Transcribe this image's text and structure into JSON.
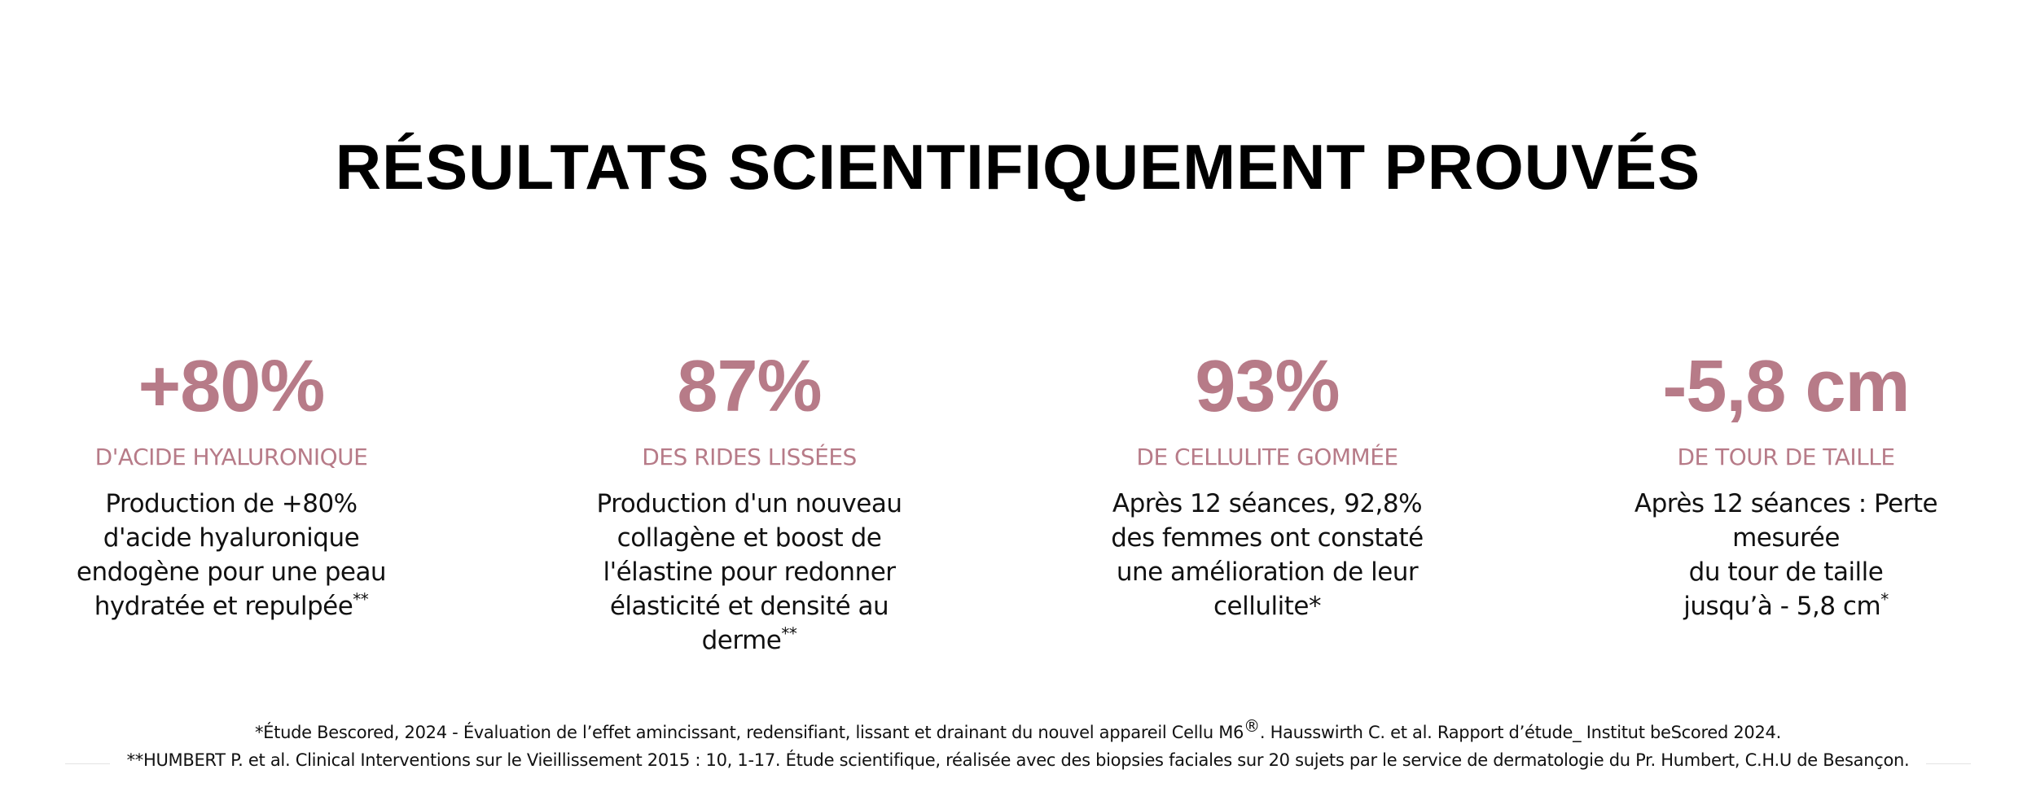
{
  "header": {
    "title": "RÉSULTATS SCIENTIFIQUEMENT PROUVÉS"
  },
  "stats": [
    {
      "value": "+80%",
      "label": "D'ACIDE HYALURONIQUE",
      "lines": [
        "Production de +80%",
        "d'acide hyaluronique",
        "endogène pour une peau",
        "hydratée et repulpée"
      ],
      "note": "**"
    },
    {
      "value": "87%",
      "label": "DES RIDES LISSÉES",
      "lines": [
        "Production d'un nouveau",
        "collagène et boost de",
        "l'élastine pour redonner",
        "élasticité et densité au",
        "derme"
      ],
      "note": "**"
    },
    {
      "value": "93%",
      "label": "DE CELLULITE GOMMÉE",
      "lines": [
        "Après 12 séances, 92,8%",
        "des femmes ont constaté",
        "une amélioration de leur",
        "cellulite*"
      ]
    },
    {
      "value": "-5,8 cm",
      "label": "DE TOUR DE TAILLE",
      "lines": [
        "Après 12 séances : Perte",
        "mesurée",
        "du tour de taille",
        "jusqu’à - 5,8 cm"
      ],
      "note": "*"
    }
  ],
  "footnotes": [
    {
      "text": "*Étude Bescored, 2024 - Évaluation de l’effet amincissant, redensifiant, lissant et drainant du nouvel appareil Cellu M6",
      "sup": "®",
      "after": ". Hausswirth C. et al. Rapport d’étude_ Institut beScored 2024."
    },
    {
      "text": "**HUMBERT P. et al. Clinical Interventions sur le Vieillissement 2015 : 10, 1-17. Étude scientifique, réalisée avec des biopsies faciales sur 20 sujets par le service de dermatologie du Pr. Humbert, C.H.U de Besançon."
    }
  ]
}
